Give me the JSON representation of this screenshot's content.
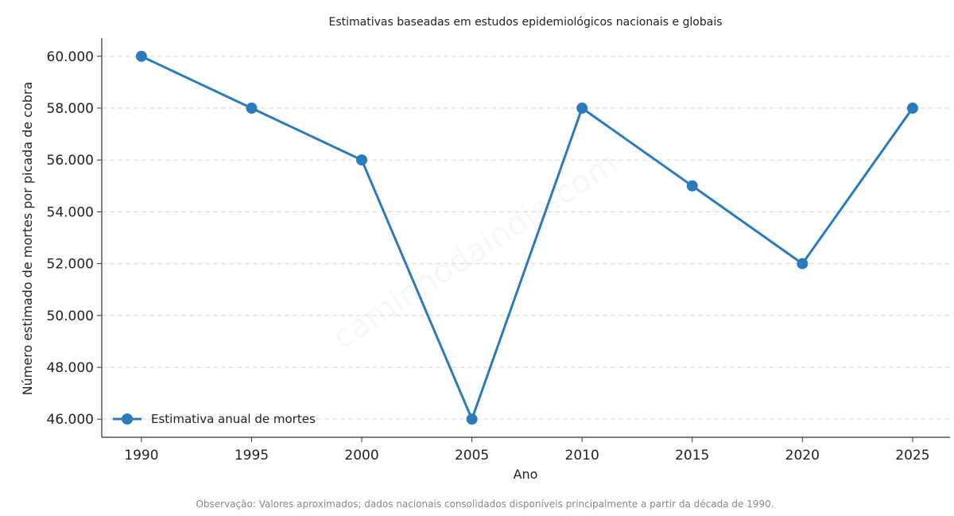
{
  "chart_data": {
    "type": "line",
    "title": "Estimativas baseadas em estudos epidemiológicos nacionais e globais",
    "xlabel": "Ano",
    "ylabel": "Número estimado de mortes por picada de cobra",
    "x": [
      1990,
      1995,
      2000,
      2005,
      2010,
      2015,
      2020,
      2025
    ],
    "series": [
      {
        "name": "Estimativa anual de mortes",
        "values": [
          60000,
          58000,
          56000,
          46000,
          58000,
          55000,
          52000,
          58000
        ],
        "color": "#2b7bba"
      }
    ],
    "x_ticks": [
      "1990",
      "1995",
      "2000",
      "2005",
      "2010",
      "2015",
      "2020",
      "2025"
    ],
    "y_ticks": [
      {
        "value": 46000,
        "label": "46.000"
      },
      {
        "value": 48000,
        "label": "48.000"
      },
      {
        "value": 50000,
        "label": "50.000"
      },
      {
        "value": 52000,
        "label": "52.000"
      },
      {
        "value": 54000,
        "label": "54.000"
      },
      {
        "value": 56000,
        "label": "56.000"
      },
      {
        "value": 58000,
        "label": "58.000"
      },
      {
        "value": 60000,
        "label": "60.000"
      }
    ],
    "xlim": [
      1988.2,
      2026.7
    ],
    "ylim": [
      45300,
      60700
    ],
    "grid": "horizontal dashed",
    "legend_position": "bottom-left",
    "note": "Observação: Valores aproximados; dados nacionais consolidados disponíveis principalmente a partir da década de 1990.",
    "watermark": "caminhodaindia.com"
  }
}
